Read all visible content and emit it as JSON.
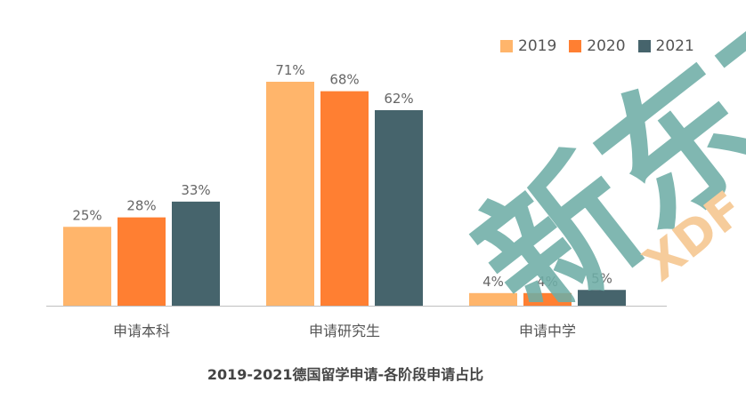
{
  "chart_data": {
    "type": "bar",
    "title": "2019-2021德国留学申请-各阶段申请占比",
    "categories": [
      "申请本科",
      "申请研究生",
      "申请中学"
    ],
    "series": [
      {
        "name": "2019",
        "values": [
          25,
          71,
          4
        ],
        "labels": [
          "25%",
          "71%",
          "4%"
        ],
        "color": "#FFB56B"
      },
      {
        "name": "2020",
        "values": [
          28,
          68,
          4
        ],
        "labels": [
          "28%",
          "68%",
          "4%"
        ],
        "color": "#FF7F32"
      },
      {
        "name": "2021",
        "values": [
          33,
          62,
          5
        ],
        "labels": [
          "33%",
          "62%",
          "5%"
        ],
        "color": "#46646C"
      }
    ],
    "ylim": [
      0,
      75
    ],
    "grid": false,
    "legend_position": "top-right"
  },
  "watermark": {
    "text": "新东方",
    "subtext": "XDF",
    "color": "#6FAEA7",
    "subcolor": "#F5C58E"
  }
}
